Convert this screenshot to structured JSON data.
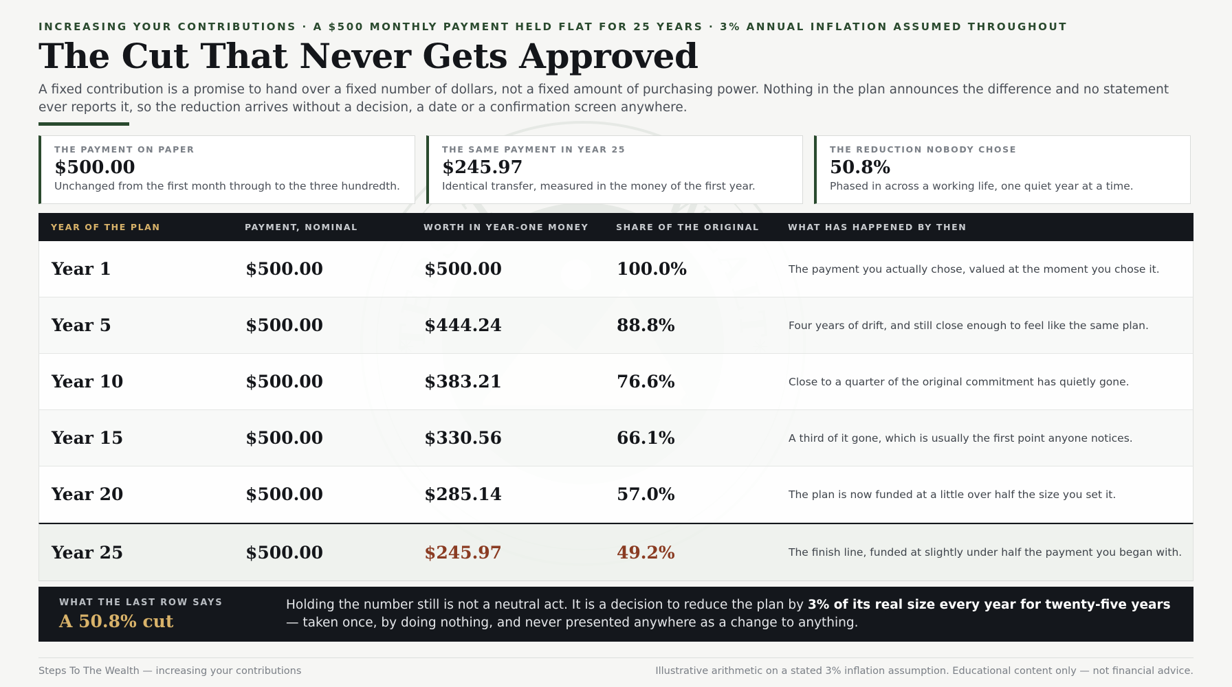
{
  "header": {
    "kicker": "INCREASING YOUR CONTRIBUTIONS · A $500 MONTHLY PAYMENT HELD FLAT FOR 25 YEARS · 3% ANNUAL INFLATION ASSUMED THROUGHOUT",
    "title": "The Cut That Never Gets Approved",
    "lede": "A fixed contribution is a promise to hand over a fixed number of dollars, not a fixed amount of purchasing power. Nothing in the plan announces the difference and no statement ever reports it, so the reduction arrives without a decision, a date or a confirmation screen anywhere."
  },
  "stats": [
    {
      "label": "THE PAYMENT ON PAPER",
      "value": "$500.00",
      "note": "Unchanged from the first month through to the three hundredth."
    },
    {
      "label": "THE SAME PAYMENT IN YEAR 25",
      "value": "$245.97",
      "note": "Identical transfer, measured in the money of the first year."
    },
    {
      "label": "THE REDUCTION NOBODY CHOSE",
      "value": "50.8%",
      "note": "Phased in across a working life, one quiet year at a time."
    }
  ],
  "table": {
    "headers": [
      "YEAR OF THE PLAN",
      "PAYMENT, NOMINAL",
      "WORTH IN YEAR-ONE MONEY",
      "SHARE OF THE ORIGINAL",
      "WHAT HAS HAPPENED BY THEN"
    ],
    "rows": [
      {
        "year": "Year 1",
        "nominal": "$500.00",
        "real": "$500.00",
        "share": "100.0%",
        "note": "The payment you actually chose, valued at the moment you chose it."
      },
      {
        "year": "Year 5",
        "nominal": "$500.00",
        "real": "$444.24",
        "share": "88.8%",
        "note": "Four years of drift, and still close enough to feel like the same plan."
      },
      {
        "year": "Year 10",
        "nominal": "$500.00",
        "real": "$383.21",
        "share": "76.6%",
        "note": "Close to a quarter of the original commitment has quietly gone."
      },
      {
        "year": "Year 15",
        "nominal": "$500.00",
        "real": "$330.56",
        "share": "66.1%",
        "note": "A third of it gone, which is usually the first point anyone notices."
      },
      {
        "year": "Year 20",
        "nominal": "$500.00",
        "real": "$285.14",
        "share": "57.0%",
        "note": "The plan is now funded at a little over half the size you set it."
      },
      {
        "year": "Year 25",
        "nominal": "$500.00",
        "real": "$245.97",
        "share": "49.2%",
        "note": "The finish line, funded at slightly under half the payment you began with."
      }
    ]
  },
  "callout": {
    "label": "WHAT THE LAST ROW SAYS",
    "value": "A 50.8% cut",
    "text_before": "Holding the number still is not a neutral act. It is a decision to reduce the plan by ",
    "text_strong": "3% of its real size every year for twenty-five years",
    "text_after": " — taken once, by doing nothing, and never presented anywhere as a change to anything."
  },
  "footer": {
    "left": "Steps To The Wealth — increasing your contributions",
    "right": "Illustrative arithmetic on a stated 3% inflation assumption. Educational content only — not financial advice."
  },
  "watermark": {
    "text_top": "STEPS TO THE WEALTH",
    "text_bottom": "ONE AT A TIME"
  },
  "colors": {
    "accent_green": "#2a4a2e",
    "gold": "#d9b36a",
    "rust": "#8a3b22",
    "ink": "#14171c"
  }
}
